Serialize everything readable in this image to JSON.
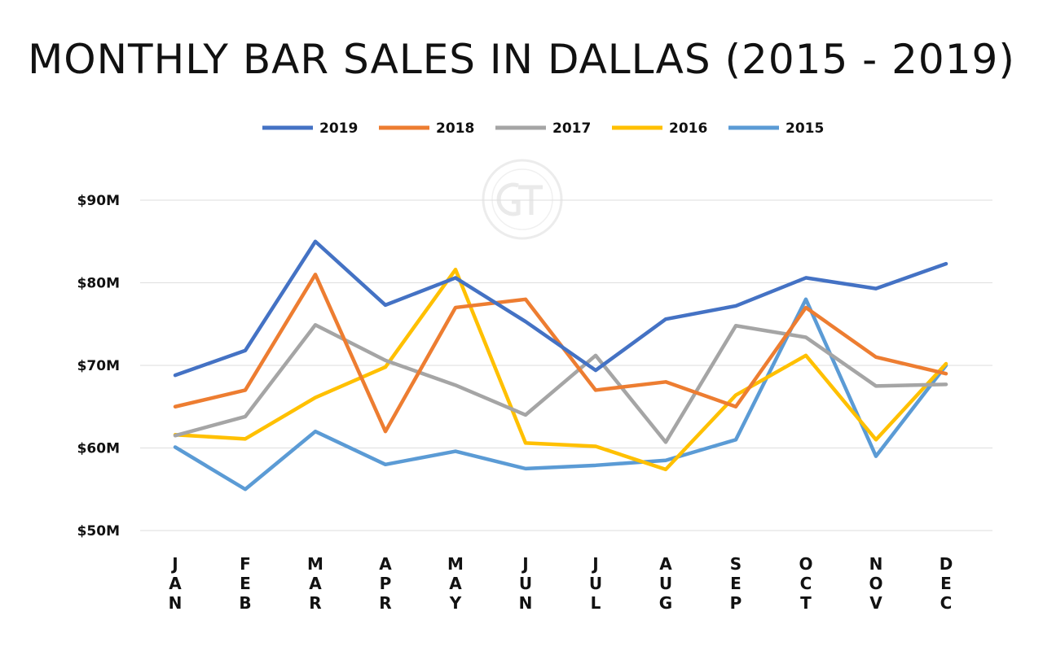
{
  "chart_data": {
    "type": "line",
    "title": "MONTHLY BAR SALES IN DALLAS (2015 - 2019)",
    "categories": [
      "JAN",
      "FEB",
      "MAR",
      "APR",
      "MAY",
      "JUN",
      "JUL",
      "AUG",
      "SEP",
      "OCT",
      "NOV",
      "DEC"
    ],
    "ylim": [
      50,
      90
    ],
    "yticks": [
      50,
      60,
      70,
      80,
      90
    ],
    "ytick_labels": [
      "$50M",
      "$60M",
      "$70M",
      "$80M",
      "$90M"
    ],
    "grid": true,
    "legend_position": "top",
    "series": [
      {
        "name": "2019",
        "color": "#4472c4",
        "values": [
          68.8,
          71.8,
          85.0,
          77.3,
          80.6,
          75.3,
          69.4,
          75.6,
          77.2,
          80.6,
          79.3,
          82.3
        ]
      },
      {
        "name": "2018",
        "color": "#ed7d31",
        "values": [
          65.0,
          67.0,
          81.0,
          62.0,
          77.0,
          78.0,
          67.0,
          68.0,
          65.0,
          77.0,
          71.0,
          69.0
        ]
      },
      {
        "name": "2017",
        "color": "#a5a5a5",
        "values": [
          61.5,
          63.8,
          74.9,
          70.6,
          67.6,
          64.0,
          71.2,
          60.7,
          74.8,
          73.4,
          67.5,
          67.7
        ]
      },
      {
        "name": "2016",
        "color": "#ffc000",
        "values": [
          61.6,
          61.1,
          66.1,
          69.8,
          81.6,
          60.6,
          60.2,
          57.4,
          66.4,
          71.2,
          61.0,
          70.2
        ]
      },
      {
        "name": "2015",
        "color": "#5b9bd5",
        "values": [
          60.1,
          55.0,
          62.0,
          58.0,
          59.6,
          57.5,
          57.9,
          58.5,
          61.0,
          78.0,
          59.0,
          70.0
        ]
      }
    ]
  }
}
